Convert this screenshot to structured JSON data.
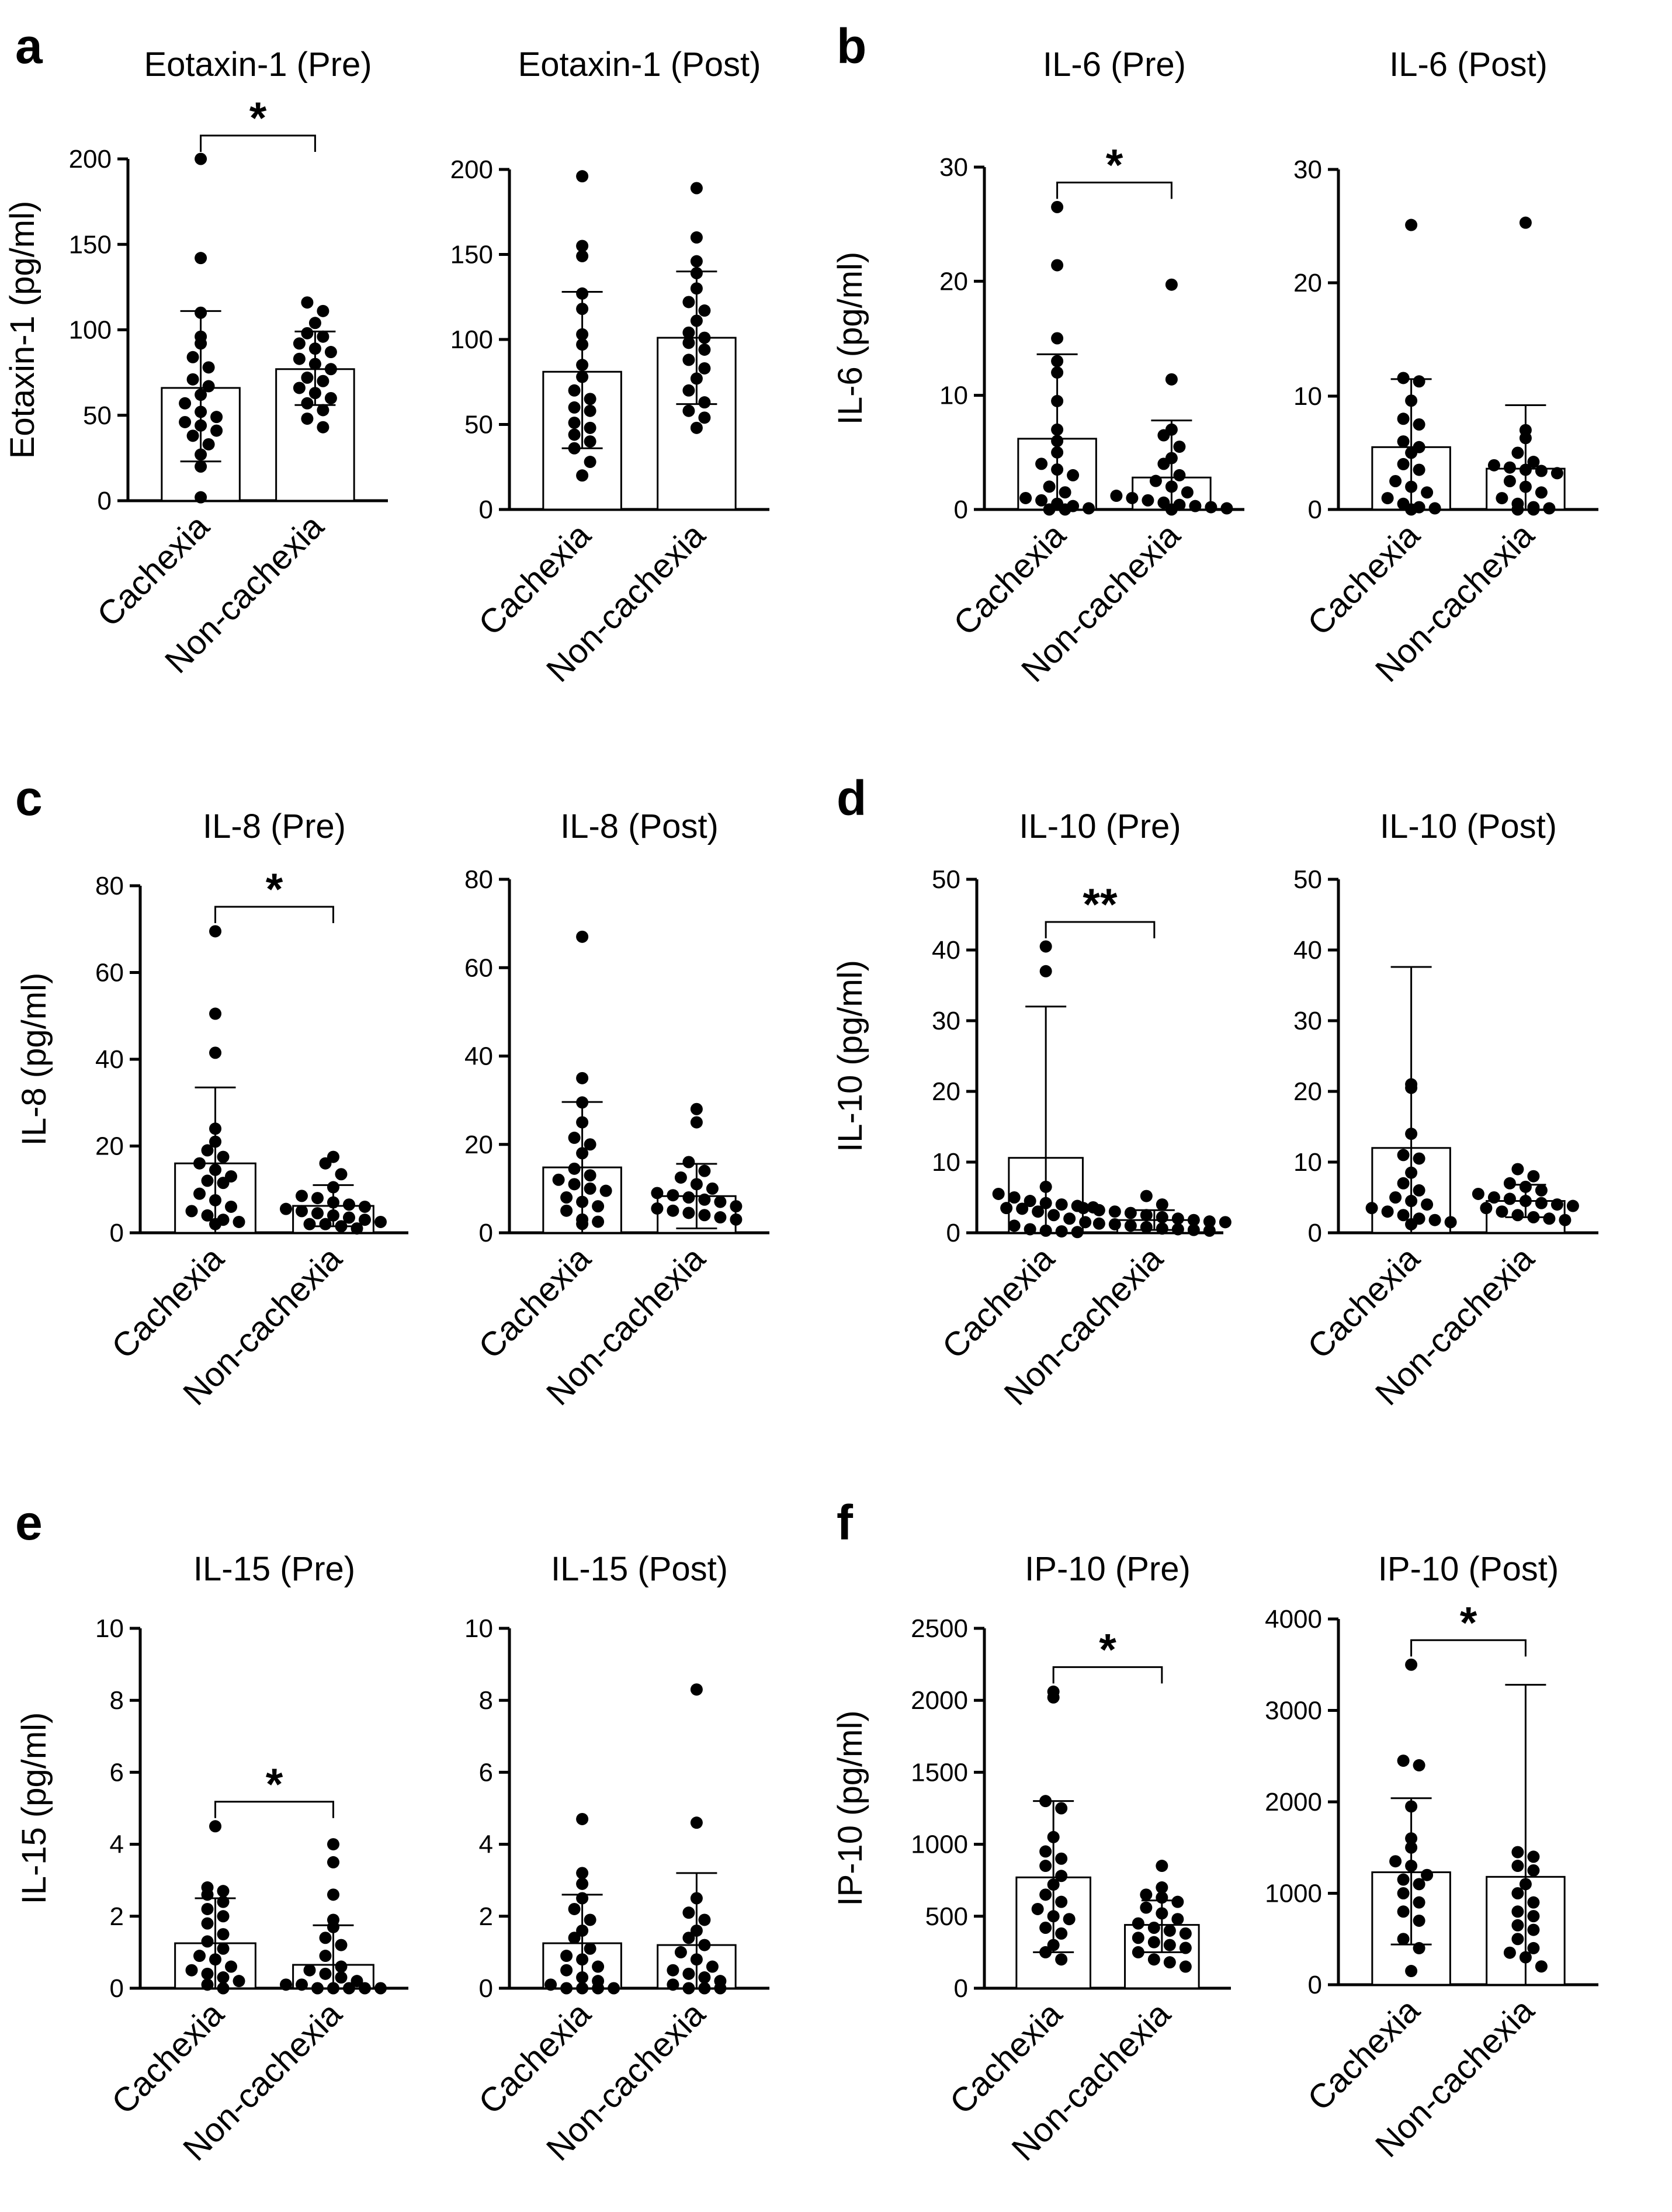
{
  "panels": [
    {
      "letter": "a"
    },
    {
      "letter": "b"
    },
    {
      "letter": "c"
    },
    {
      "letter": "d"
    },
    {
      "letter": "e"
    },
    {
      "letter": "f"
    }
  ],
  "chart_data": [
    {
      "type": "bar",
      "panel": "a",
      "title": "Eotaxin-1 (Pre)",
      "ylabel": "Eotaxin-1 (pg/ml)",
      "ylim": [
        0,
        200
      ],
      "yticks": [
        0,
        50,
        100,
        150,
        200
      ],
      "categories": [
        "Cachexia",
        "Non-cachexia"
      ],
      "means": [
        66,
        77
      ],
      "error_upper": [
        111,
        99
      ],
      "error_lower": [
        23,
        56
      ],
      "significance": "*",
      "points": [
        [
          200,
          142,
          110,
          96,
          92,
          84,
          78,
          71,
          67,
          62,
          57,
          52,
          49,
          46,
          44,
          41,
          38,
          33,
          27,
          20,
          2
        ],
        [
          116,
          111,
          104,
          98,
          96,
          92,
          89,
          87,
          83,
          80,
          77,
          72,
          70,
          66,
          63,
          60,
          57,
          53,
          48,
          43
        ]
      ]
    },
    {
      "type": "bar",
      "panel": "a",
      "title": "Eotaxin-1 (Post)",
      "ylabel": "",
      "ylim": [
        0,
        200
      ],
      "yticks": [
        0,
        50,
        100,
        150,
        200
      ],
      "categories": [
        "Cachexia",
        "Non-cachexia"
      ],
      "means": [
        81,
        101
      ],
      "error_upper": [
        128,
        140
      ],
      "error_lower": [
        36,
        62
      ],
      "significance": "",
      "points": [
        [
          196,
          155,
          149,
          127,
          118,
          103,
          97,
          85,
          78,
          70,
          65,
          60,
          58,
          51,
          48,
          44,
          40,
          36,
          28,
          20
        ],
        [
          189,
          160,
          146,
          139,
          130,
          122,
          117,
          111,
          104,
          101,
          98,
          94,
          88,
          83,
          77,
          70,
          63,
          58,
          54,
          48
        ]
      ]
    },
    {
      "type": "bar",
      "panel": "b",
      "title": "IL-6 (Pre)",
      "ylabel": "IL-6 (pg/ml)",
      "ylim": [
        0,
        30
      ],
      "yticks": [
        0,
        10,
        20,
        30
      ],
      "categories": [
        "Cachexia",
        "Non-cachexia"
      ],
      "means": [
        6.2,
        2.8
      ],
      "error_upper": [
        13.6,
        7.8
      ],
      "error_lower": [
        0,
        0
      ],
      "significance": "*",
      "points": [
        [
          26.5,
          21.4,
          15.0,
          13.0,
          12.0,
          9.5,
          7.0,
          6.0,
          5.0,
          4.0,
          3.5,
          3.0,
          2.0,
          1.5,
          1.0,
          0.8,
          0.5,
          0.3,
          0.1,
          0.0,
          0.0
        ],
        [
          19.7,
          11.4,
          7.0,
          6.5,
          5.5,
          4.5,
          4.0,
          3.0,
          2.5,
          2.0,
          1.5,
          1.2,
          1.0,
          0.8,
          0.6,
          0.4,
          0.3,
          0.2,
          0.1,
          0.0
        ]
      ]
    },
    {
      "type": "bar",
      "panel": "b",
      "title": "IL-6 (Post)",
      "ylabel": "",
      "ylim": [
        0,
        30
      ],
      "yticks": [
        0,
        10,
        20,
        30
      ],
      "categories": [
        "Cachexia",
        "Non-cachexia"
      ],
      "means": [
        5.5,
        3.6
      ],
      "error_upper": [
        11.5,
        9.2
      ],
      "error_lower": [
        0,
        0
      ],
      "significance": "",
      "points": [
        [
          25.1,
          11.6,
          11.3,
          9.6,
          8.0,
          7.5,
          6.0,
          5.5,
          5.0,
          4.0,
          3.5,
          2.5,
          2.0,
          1.5,
          1.0,
          0.5,
          0.2,
          0.1,
          0.0
        ],
        [
          25.3,
          7.0,
          6.3,
          5.0,
          4.2,
          3.9,
          3.7,
          3.5,
          3.4,
          3.2,
          2.5,
          2.0,
          1.5,
          1.0,
          0.5,
          0.2,
          0.1,
          0.0,
          0.0
        ]
      ]
    },
    {
      "type": "bar",
      "panel": "c",
      "title": "IL-8 (Pre)",
      "ylabel": "IL-8 (pg/ml)",
      "ylim": [
        0,
        80
      ],
      "yticks": [
        0,
        20,
        40,
        60,
        80
      ],
      "categories": [
        "Cachexia",
        "Non-cachexia"
      ],
      "means": [
        16,
        6.2
      ],
      "error_upper": [
        33.5,
        11
      ],
      "error_lower": [
        0,
        1.5
      ],
      "significance": "*",
      "points": [
        [
          69.5,
          50.5,
          41.5,
          24,
          21,
          19,
          17.5,
          16,
          14.5,
          13,
          12,
          11.5,
          9,
          7.5,
          6,
          5,
          4,
          3,
          2.5,
          2
        ],
        [
          17.5,
          16,
          13.5,
          10.5,
          8.5,
          8,
          7,
          6.5,
          6,
          5.5,
          5,
          4.5,
          4,
          3.5,
          3,
          2.5,
          2,
          2,
          1.5,
          1
        ]
      ]
    },
    {
      "type": "bar",
      "panel": "c",
      "title": "IL-8 (Post)",
      "ylabel": "",
      "ylim": [
        0,
        80
      ],
      "yticks": [
        0,
        20,
        40,
        60,
        80
      ],
      "categories": [
        "Cachexia",
        "Non-cachexia"
      ],
      "means": [
        14.8,
        8.3
      ],
      "error_upper": [
        29.6,
        15.6
      ],
      "error_lower": [
        0,
        1
      ],
      "significance": "",
      "points": [
        [
          67,
          35,
          29.5,
          25,
          21.5,
          20,
          18,
          14.5,
          13,
          12,
          11,
          10,
          9.5,
          8,
          7,
          6,
          5,
          3,
          2.5,
          2
        ],
        [
          28,
          25,
          16,
          14,
          12.5,
          11,
          10,
          9,
          8.5,
          8,
          7.5,
          7,
          6,
          5.5,
          5,
          4.5,
          4,
          3.5,
          3
        ]
      ]
    },
    {
      "type": "bar",
      "panel": "d",
      "title": "IL-10 (Pre)",
      "ylabel": "IL-10 (pg/ml)",
      "ylim": [
        0,
        50
      ],
      "yticks": [
        0,
        10,
        20,
        30,
        40,
        50
      ],
      "categories": [
        "Cachexia",
        "Non-cachexia"
      ],
      "means": [
        10.6,
        1.8
      ],
      "error_upper": [
        32,
        3.2
      ],
      "error_lower": [
        0,
        0.4
      ],
      "significance": "**",
      "points": [
        [
          40.5,
          37,
          6.5,
          5.5,
          5,
          4.5,
          4.2,
          4,
          3.8,
          3.6,
          3.5,
          3.4,
          3,
          2.5,
          2,
          1.5,
          1,
          0.5,
          0.3,
          0.2,
          0.1
        ],
        [
          5.2,
          4,
          3.5,
          3.2,
          3,
          2.8,
          2.5,
          2.2,
          2,
          1.8,
          1.6,
          1.5,
          1.3,
          1.2,
          1,
          0.8,
          0.6,
          0.5,
          0.4,
          0.3
        ]
      ]
    },
    {
      "type": "bar",
      "panel": "d",
      "title": "IL-10 (Post)",
      "ylabel": "",
      "ylim": [
        0,
        50
      ],
      "yticks": [
        0,
        10,
        20,
        30,
        40,
        50
      ],
      "categories": [
        "Cachexia",
        "Non-cachexia"
      ],
      "means": [
        12,
        4.5
      ],
      "error_upper": [
        37.6,
        6.8
      ],
      "error_lower": [
        0,
        2.2
      ],
      "significance": "",
      "points": [
        [
          21,
          20.5,
          14,
          11,
          10.5,
          8.5,
          7,
          6,
          5,
          4.5,
          4,
          3.5,
          3,
          2.5,
          2,
          1.8,
          1.5,
          1.2
        ],
        [
          9,
          8,
          7,
          6.5,
          6,
          5.5,
          5,
          4.8,
          4.5,
          4.2,
          4,
          3.8,
          3.5,
          3,
          2.5,
          2.2,
          2,
          1.8
        ]
      ]
    },
    {
      "type": "bar",
      "panel": "e",
      "title": "IL-15 (Pre)",
      "ylabel": "IL-15 (pg/ml)",
      "ylim": [
        0,
        10
      ],
      "yticks": [
        0,
        2,
        4,
        6,
        8,
        10
      ],
      "categories": [
        "Cachexia",
        "Non-cachexia"
      ],
      "means": [
        1.25,
        0.65
      ],
      "error_upper": [
        2.5,
        1.75
      ],
      "error_lower": [
        0,
        0
      ],
      "significance": "*",
      "points": [
        [
          4.5,
          2.8,
          2.7,
          2.6,
          2.4,
          2.2,
          2.0,
          1.8,
          1.5,
          1.3,
          1.1,
          0.9,
          0.8,
          0.6,
          0.5,
          0.4,
          0.3,
          0.2,
          0.1,
          0.0
        ],
        [
          4.0,
          3.5,
          2.6,
          1.9,
          1.7,
          1.4,
          1.2,
          0.9,
          0.6,
          0.5,
          0.4,
          0.3,
          0.2,
          0.1,
          0.1,
          0.0,
          0.0,
          0.0,
          0.0,
          0.0
        ]
      ]
    },
    {
      "type": "bar",
      "panel": "e",
      "title": "IL-15 (Post)",
      "ylabel": "",
      "ylim": [
        0,
        10
      ],
      "yticks": [
        0,
        2,
        4,
        6,
        8,
        10
      ],
      "categories": [
        "Cachexia",
        "Non-cachexia"
      ],
      "means": [
        1.25,
        1.2
      ],
      "error_upper": [
        2.6,
        3.2
      ],
      "error_lower": [
        0,
        0
      ],
      "significance": "",
      "points": [
        [
          4.7,
          3.2,
          2.9,
          2.5,
          2.2,
          1.9,
          1.6,
          1.4,
          1.1,
          0.9,
          0.8,
          0.6,
          0.5,
          0.3,
          0.2,
          0.1,
          0.0,
          0.0,
          0.0,
          0.0
        ],
        [
          8.3,
          4.6,
          2.5,
          2.1,
          1.9,
          1.6,
          1.4,
          1.2,
          1.0,
          0.8,
          0.6,
          0.5,
          0.4,
          0.3,
          0.2,
          0.1,
          0.0,
          0.0,
          0.0
        ]
      ]
    },
    {
      "type": "bar",
      "panel": "f",
      "title": "IP-10 (Pre)",
      "ylabel": "IP-10 (pg/ml)",
      "ylim": [
        0,
        2500
      ],
      "yticks": [
        0,
        500,
        1000,
        1500,
        2000,
        2500
      ],
      "categories": [
        "Cachexia",
        "Non-cachexia"
      ],
      "means": [
        770,
        440
      ],
      "error_upper": [
        1300,
        610
      ],
      "error_lower": [
        250,
        250
      ],
      "significance": "*",
      "points": [
        [
          2060,
          2020,
          1300,
          1250,
          1050,
          950,
          900,
          850,
          780,
          720,
          650,
          600,
          550,
          500,
          480,
          420,
          380,
          300,
          250,
          200
        ],
        [
          850,
          700,
          650,
          630,
          600,
          560,
          520,
          480,
          450,
          420,
          400,
          380,
          350,
          320,
          300,
          280,
          250,
          200,
          180,
          150
        ]
      ]
    },
    {
      "type": "bar",
      "panel": "f",
      "title": "IP-10 (Post)",
      "ylabel": "",
      "ylim": [
        0,
        4000
      ],
      "yticks": [
        0,
        1000,
        2000,
        3000,
        4000
      ],
      "categories": [
        "Cachexia",
        "Non-cachexia"
      ],
      "means": [
        1230,
        1180
      ],
      "error_upper": [
        2040,
        3280
      ],
      "error_lower": [
        440,
        0
      ],
      "significance": "*",
      "points": [
        [
          3500,
          2450,
          2400,
          1950,
          1600,
          1500,
          1350,
          1300,
          1200,
          1150,
          1100,
          1000,
          900,
          800,
          700,
          500,
          400,
          150
        ],
        [
          1450,
          1400,
          1300,
          1250,
          1100,
          1000,
          900,
          800,
          750,
          650,
          600,
          500,
          400,
          350,
          300,
          200
        ]
      ]
    }
  ]
}
